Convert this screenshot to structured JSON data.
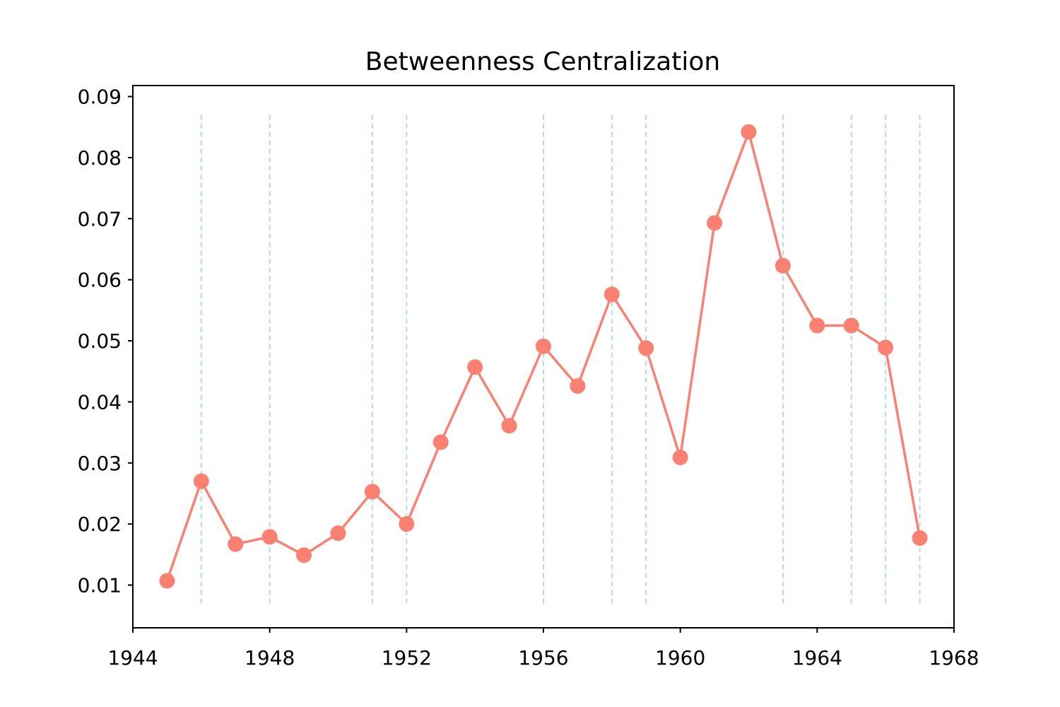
{
  "chart_data": {
    "type": "line",
    "title": "Betweenness Centralization",
    "xlabel": "",
    "ylabel": "",
    "xlim": [
      1944,
      1968
    ],
    "ylim": [
      0.003,
      0.0918
    ],
    "xticks": [
      1944,
      1948,
      1952,
      1956,
      1960,
      1964,
      1968
    ],
    "yticks": [
      0.01,
      0.02,
      0.03,
      0.04,
      0.05,
      0.06,
      0.07,
      0.08,
      0.09
    ],
    "xtick_labels": [
      "1944",
      "1948",
      "1952",
      "1956",
      "1960",
      "1964",
      "1968"
    ],
    "ytick_labels": [
      "0.01",
      "0.02",
      "0.03",
      "0.04",
      "0.05",
      "0.06",
      "0.07",
      "0.08",
      "0.09"
    ],
    "series": [
      {
        "x": [
          1945,
          1946,
          1947,
          1948,
          1949,
          1950,
          1951,
          1952,
          1953,
          1954,
          1955,
          1956,
          1957,
          1958,
          1959,
          1960,
          1961,
          1962,
          1963,
          1964,
          1965,
          1966,
          1967
        ],
        "y": [
          0.0107,
          0.027,
          0.0167,
          0.0179,
          0.0149,
          0.0185,
          0.0253,
          0.02,
          0.0334,
          0.0457,
          0.0361,
          0.0491,
          0.0426,
          0.0576,
          0.0488,
          0.0309,
          0.0693,
          0.0842,
          0.0623,
          0.0525,
          0.0525,
          0.0489,
          0.0177
        ],
        "color": "#fa8072"
      }
    ],
    "vertical_reference_lines": {
      "x": [
        1946,
        1948,
        1951,
        1952,
        1956,
        1958,
        1959,
        1963,
        1965,
        1966,
        1967
      ],
      "y_range": [
        0.007,
        0.087
      ],
      "color": "#b0dcdc",
      "style": "dashed"
    },
    "grid": false,
    "legend": "none"
  }
}
